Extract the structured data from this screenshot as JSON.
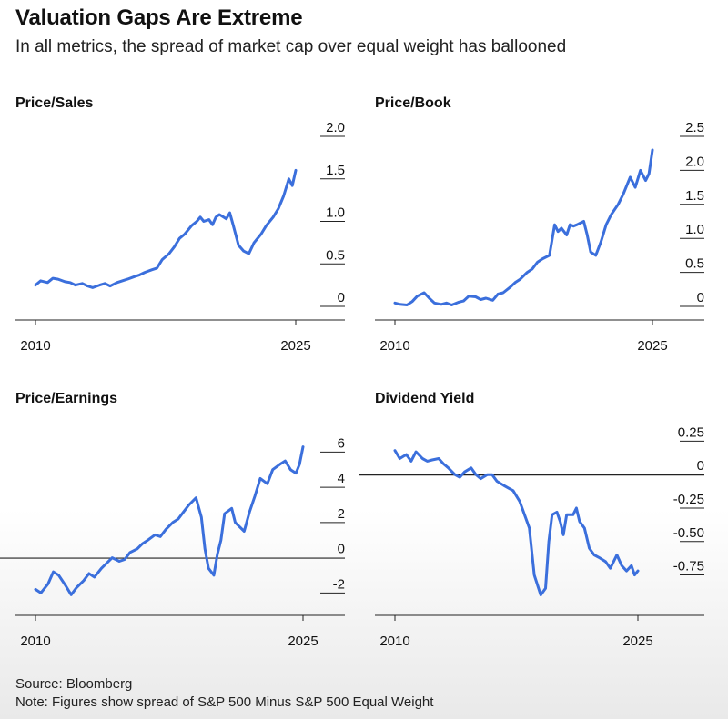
{
  "header": {
    "title": "Valuation Gaps Are Extreme",
    "subtitle": "In all metrics, the spread of market cap over equal weight has ballooned"
  },
  "footer": {
    "source": "Source: Bloomberg",
    "note": "Note: Figures show spread of S&P 500 Minus S&P 500 Equal Weight"
  },
  "colors": {
    "line": "#3b6fdc",
    "axis": "#222222",
    "text": "#111111"
  },
  "chart_data": [
    {
      "type": "line",
      "title": "Price/Sales",
      "x_tick_labels": [
        "2010",
        "2025"
      ],
      "xlim": [
        2010,
        2025
      ],
      "ylim": [
        0,
        2.0
      ],
      "y_ticks": [
        0,
        0.5,
        1.0,
        1.5,
        2.0
      ],
      "y_tick_labels": [
        "0",
        "0.5",
        "1.0",
        "1.5",
        "2.0"
      ],
      "zero_line": false,
      "series": [
        {
          "x": [
            2010,
            2010.3,
            2010.7,
            2011,
            2011.3,
            2011.7,
            2012,
            2012.3,
            2012.7,
            2013,
            2013.3,
            2013.7,
            2014,
            2014.3,
            2014.7,
            2015,
            2015.3,
            2015.7,
            2016,
            2016.3,
            2016.7,
            2017,
            2017.3,
            2017.7,
            2018,
            2018.3,
            2018.6,
            2019,
            2019.3,
            2019.5,
            2019.7,
            2020,
            2020.2,
            2020.4,
            2020.6,
            2021,
            2021.2,
            2021.4,
            2021.7,
            2022,
            2022.3,
            2022.6,
            2023,
            2023.3,
            2023.7,
            2024,
            2024.3,
            2024.6,
            2024.8,
            2025
          ],
          "y": [
            0.25,
            0.3,
            0.28,
            0.33,
            0.32,
            0.29,
            0.28,
            0.25,
            0.27,
            0.24,
            0.22,
            0.25,
            0.27,
            0.24,
            0.28,
            0.3,
            0.32,
            0.35,
            0.37,
            0.4,
            0.43,
            0.45,
            0.55,
            0.62,
            0.7,
            0.8,
            0.85,
            0.95,
            1.0,
            1.05,
            1.0,
            1.02,
            0.96,
            1.05,
            1.08,
            1.03,
            1.1,
            0.95,
            0.72,
            0.65,
            0.62,
            0.75,
            0.85,
            0.95,
            1.05,
            1.15,
            1.3,
            1.5,
            1.42,
            1.6
          ]
        }
      ]
    },
    {
      "type": "line",
      "title": "Price/Book",
      "x_tick_labels": [
        "2010",
        "2025"
      ],
      "xlim": [
        2010,
        2025
      ],
      "ylim": [
        0,
        2.5
      ],
      "y_ticks": [
        0,
        0.5,
        1.0,
        1.5,
        2.0,
        2.5
      ],
      "y_tick_labels": [
        "0",
        "0.5",
        "1.0",
        "1.5",
        "2.0",
        "2.5"
      ],
      "zero_line": false,
      "series": [
        {
          "x": [
            2010,
            2010.3,
            2010.7,
            2011,
            2011.3,
            2011.7,
            2012,
            2012.3,
            2012.7,
            2013,
            2013.3,
            2013.7,
            2014,
            2014.3,
            2014.7,
            2015,
            2015.3,
            2015.7,
            2016,
            2016.3,
            2016.7,
            2017,
            2017.3,
            2017.7,
            2018,
            2018.3,
            2018.6,
            2019,
            2019.3,
            2019.5,
            2019.7,
            2020,
            2020.2,
            2020.4,
            2020.6,
            2021,
            2021.2,
            2021.4,
            2021.7,
            2022,
            2022.3,
            2022.6,
            2023,
            2023.3,
            2023.7,
            2024,
            2024.3,
            2024.6,
            2024.8,
            2025
          ],
          "y": [
            0.05,
            0.03,
            0.02,
            0.07,
            0.15,
            0.2,
            0.12,
            0.05,
            0.03,
            0.05,
            0.02,
            0.06,
            0.08,
            0.15,
            0.14,
            0.1,
            0.12,
            0.09,
            0.18,
            0.2,
            0.28,
            0.35,
            0.4,
            0.5,
            0.55,
            0.65,
            0.7,
            0.75,
            1.2,
            1.1,
            1.15,
            1.05,
            1.2,
            1.18,
            1.2,
            1.25,
            1.05,
            0.8,
            0.75,
            0.95,
            1.2,
            1.35,
            1.5,
            1.65,
            1.9,
            1.75,
            2.0,
            1.85,
            1.95,
            2.3
          ]
        }
      ]
    },
    {
      "type": "line",
      "title": "Price/Earnings",
      "x_tick_labels": [
        "2010",
        "2025"
      ],
      "xlim": [
        2010,
        2025
      ],
      "ylim": [
        -2.5,
        7
      ],
      "y_ticks": [
        -2,
        0,
        2,
        4,
        6
      ],
      "y_tick_labels": [
        "-2",
        "0",
        "2",
        "4",
        "6"
      ],
      "zero_line": true,
      "series": [
        {
          "x": [
            2010,
            2010.3,
            2010.7,
            2011,
            2011.3,
            2011.7,
            2012,
            2012.3,
            2012.7,
            2013,
            2013.3,
            2013.7,
            2014,
            2014.3,
            2014.7,
            2015,
            2015.3,
            2015.7,
            2016,
            2016.3,
            2016.7,
            2017,
            2017.3,
            2017.7,
            2018,
            2018.3,
            2018.6,
            2019,
            2019.3,
            2019.5,
            2019.7,
            2020,
            2020.2,
            2020.4,
            2020.6,
            2021,
            2021.2,
            2021.4,
            2021.7,
            2022,
            2022.3,
            2022.6,
            2023,
            2023.3,
            2023.7,
            2024,
            2024.3,
            2024.6,
            2024.8,
            2025
          ],
          "y": [
            -1.8,
            -2.0,
            -1.5,
            -0.8,
            -1.0,
            -1.6,
            -2.1,
            -1.7,
            -1.3,
            -0.9,
            -1.1,
            -0.6,
            -0.3,
            0.0,
            -0.2,
            -0.1,
            0.3,
            0.5,
            0.8,
            1.0,
            1.3,
            1.2,
            1.6,
            2.0,
            2.2,
            2.6,
            3.0,
            3.4,
            2.3,
            0.5,
            -0.6,
            -1.0,
            0.2,
            1.0,
            2.5,
            2.8,
            2.0,
            1.8,
            1.5,
            2.6,
            3.5,
            4.5,
            4.2,
            5.0,
            5.3,
            5.5,
            5.0,
            4.8,
            5.3,
            6.3
          ]
        }
      ]
    },
    {
      "type": "line",
      "title": "Dividend Yield",
      "x_tick_labels": [
        "2010",
        "2025"
      ],
      "xlim": [
        2010,
        2025
      ],
      "ylim": [
        -0.95,
        0.3
      ],
      "y_ticks": [
        -0.75,
        -0.5,
        -0.25,
        0,
        0.25
      ],
      "y_tick_labels": [
        "-0.75",
        "-0.50",
        "-0.25",
        "0",
        "0.25"
      ],
      "zero_line": true,
      "series": [
        {
          "x": [
            2010,
            2010.3,
            2010.7,
            2011,
            2011.3,
            2011.7,
            2012,
            2012.3,
            2012.7,
            2013,
            2013.3,
            2013.7,
            2014,
            2014.3,
            2014.7,
            2015,
            2015.3,
            2015.7,
            2016,
            2016.3,
            2016.7,
            2017,
            2017.3,
            2017.7,
            2018,
            2018.3,
            2018.6,
            2019,
            2019.3,
            2019.5,
            2019.7,
            2020,
            2020.2,
            2020.4,
            2020.6,
            2021,
            2021.2,
            2021.4,
            2021.7,
            2022,
            2022.3,
            2022.6,
            2023,
            2023.3,
            2023.7,
            2024,
            2024.3,
            2024.6,
            2024.8,
            2025
          ],
          "y": [
            0.18,
            0.12,
            0.15,
            0.1,
            0.17,
            0.12,
            0.1,
            0.11,
            0.12,
            0.08,
            0.05,
            0.0,
            -0.02,
            0.02,
            0.05,
            0.0,
            -0.03,
            0.0,
            0.0,
            -0.05,
            -0.08,
            -0.1,
            -0.12,
            -0.2,
            -0.3,
            -0.4,
            -0.75,
            -0.9,
            -0.85,
            -0.5,
            -0.3,
            -0.28,
            -0.35,
            -0.45,
            -0.3,
            -0.3,
            -0.25,
            -0.35,
            -0.4,
            -0.55,
            -0.6,
            -0.62,
            -0.65,
            -0.7,
            -0.6,
            -0.68,
            -0.72,
            -0.68,
            -0.75,
            -0.72
          ]
        }
      ]
    }
  ]
}
